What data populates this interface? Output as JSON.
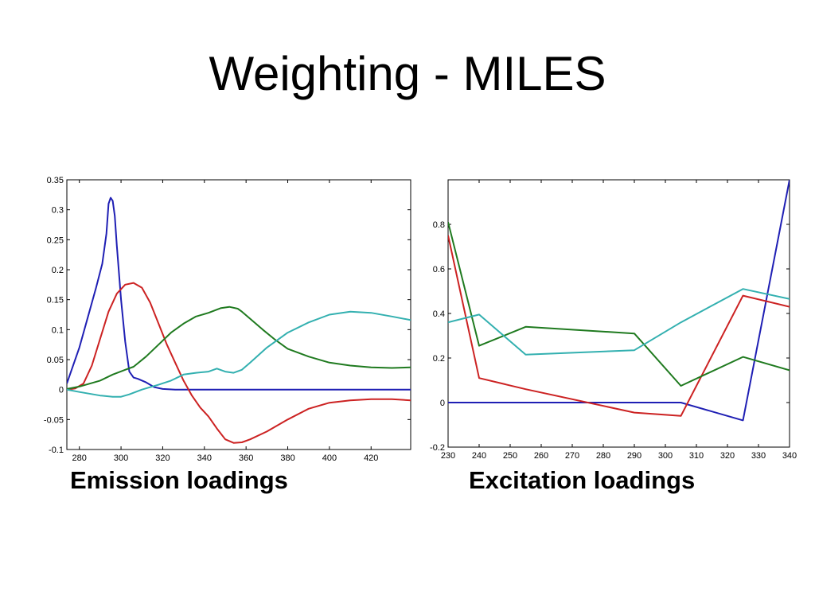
{
  "slide": {
    "title": "Weighting - MILES",
    "captions": [
      "Emission loadings",
      "Excitation loadings"
    ]
  },
  "chart_data": [
    {
      "type": "line",
      "title": "",
      "xlabel": "",
      "ylabel": "",
      "xlim": [
        274,
        439
      ],
      "ylim": [
        -0.1,
        0.35
      ],
      "xticks": [
        280,
        300,
        320,
        340,
        360,
        380,
        400,
        420
      ],
      "yticks": [
        -0.1,
        -0.05,
        0,
        0.05,
        0.1,
        0.15,
        0.2,
        0.25,
        0.3,
        0.35
      ],
      "ytick_labels": [
        "-0.1",
        "-0.05",
        "0",
        "0.05",
        "0.1",
        "0.15",
        "0.2",
        "0.25",
        "0.3",
        "0.35"
      ],
      "grid": false,
      "series": [
        {
          "color": "#1f1fb4",
          "x": [
            274,
            276,
            280,
            284,
            288,
            291,
            293,
            294,
            295,
            296,
            297,
            298,
            300,
            302,
            304,
            306,
            308,
            312,
            316,
            320,
            326,
            340,
            360,
            380,
            400,
            420,
            439
          ],
          "y": [
            0.01,
            0.03,
            0.07,
            0.12,
            0.17,
            0.21,
            0.26,
            0.31,
            0.32,
            0.315,
            0.29,
            0.24,
            0.15,
            0.08,
            0.03,
            0.02,
            0.018,
            0.012,
            0.004,
            0.001,
            0.0,
            0.0,
            0.0,
            0.0,
            0.0,
            0.0,
            0.0
          ]
        },
        {
          "color": "#cc2222",
          "x": [
            274,
            278,
            282,
            286,
            290,
            294,
            298,
            302,
            306,
            310,
            314,
            318,
            322,
            326,
            330,
            334,
            338,
            342,
            346,
            350,
            354,
            358,
            362,
            370,
            380,
            390,
            400,
            410,
            420,
            430,
            439
          ],
          "y": [
            0.0,
            0.002,
            0.01,
            0.04,
            0.085,
            0.13,
            0.16,
            0.175,
            0.178,
            0.17,
            0.145,
            0.11,
            0.075,
            0.045,
            0.015,
            -0.01,
            -0.03,
            -0.045,
            -0.065,
            -0.083,
            -0.089,
            -0.088,
            -0.083,
            -0.07,
            -0.05,
            -0.032,
            -0.022,
            -0.018,
            -0.016,
            -0.016,
            -0.018
          ]
        },
        {
          "color": "#1f7a1f",
          "x": [
            274,
            280,
            290,
            296,
            302,
            306,
            312,
            318,
            324,
            330,
            336,
            342,
            348,
            352,
            356,
            358,
            362,
            368,
            374,
            380,
            390,
            400,
            410,
            420,
            430,
            439
          ],
          "y": [
            0.001,
            0.005,
            0.015,
            0.025,
            0.033,
            0.038,
            0.055,
            0.075,
            0.095,
            0.11,
            0.122,
            0.128,
            0.136,
            0.138,
            0.135,
            0.13,
            0.118,
            0.1,
            0.083,
            0.068,
            0.055,
            0.045,
            0.04,
            0.037,
            0.036,
            0.037
          ]
        },
        {
          "color": "#33b0b0",
          "x": [
            274,
            280,
            290,
            296,
            300,
            304,
            310,
            318,
            324,
            330,
            336,
            342,
            346,
            350,
            354,
            358,
            362,
            370,
            380,
            390,
            400,
            410,
            420,
            430,
            439
          ],
          "y": [
            0.0,
            -0.004,
            -0.01,
            -0.012,
            -0.012,
            -0.008,
            0.0,
            0.008,
            0.015,
            0.025,
            0.028,
            0.03,
            0.035,
            0.03,
            0.028,
            0.033,
            0.045,
            0.07,
            0.095,
            0.112,
            0.125,
            0.13,
            0.128,
            0.122,
            0.116
          ]
        }
      ]
    },
    {
      "type": "line",
      "title": "",
      "xlabel": "",
      "ylabel": "",
      "xlim": [
        230,
        340
      ],
      "ylim": [
        -0.2,
        1.0
      ],
      "xticks": [
        230,
        240,
        250,
        260,
        270,
        280,
        290,
        300,
        310,
        320,
        330,
        340
      ],
      "yticks": [
        -0.2,
        0,
        0.2,
        0.4,
        0.6,
        0.8
      ],
      "ytick_labels": [
        "-0.2",
        "0",
        "0.2",
        "0.4",
        "0.6",
        "0.8"
      ],
      "grid": false,
      "series": [
        {
          "color": "#1f1fb4",
          "x": [
            230,
            240,
            255,
            290,
            305,
            325,
            340
          ],
          "y": [
            0.0,
            0.0,
            0.0,
            0.0,
            0.0,
            -0.08,
            1.0
          ]
        },
        {
          "color": "#cc2222",
          "x": [
            230,
            240,
            255,
            290,
            305,
            325,
            340
          ],
          "y": [
            0.75,
            0.11,
            0.06,
            -0.045,
            -0.06,
            0.48,
            0.43
          ]
        },
        {
          "color": "#1f7a1f",
          "x": [
            230,
            240,
            255,
            290,
            305,
            325,
            340
          ],
          "y": [
            0.81,
            0.255,
            0.34,
            0.31,
            0.075,
            0.205,
            0.145
          ]
        },
        {
          "color": "#33b0b0",
          "x": [
            230,
            240,
            255,
            290,
            305,
            325,
            340
          ],
          "y": [
            0.36,
            0.395,
            0.215,
            0.235,
            0.36,
            0.51,
            0.465
          ]
        }
      ]
    }
  ]
}
